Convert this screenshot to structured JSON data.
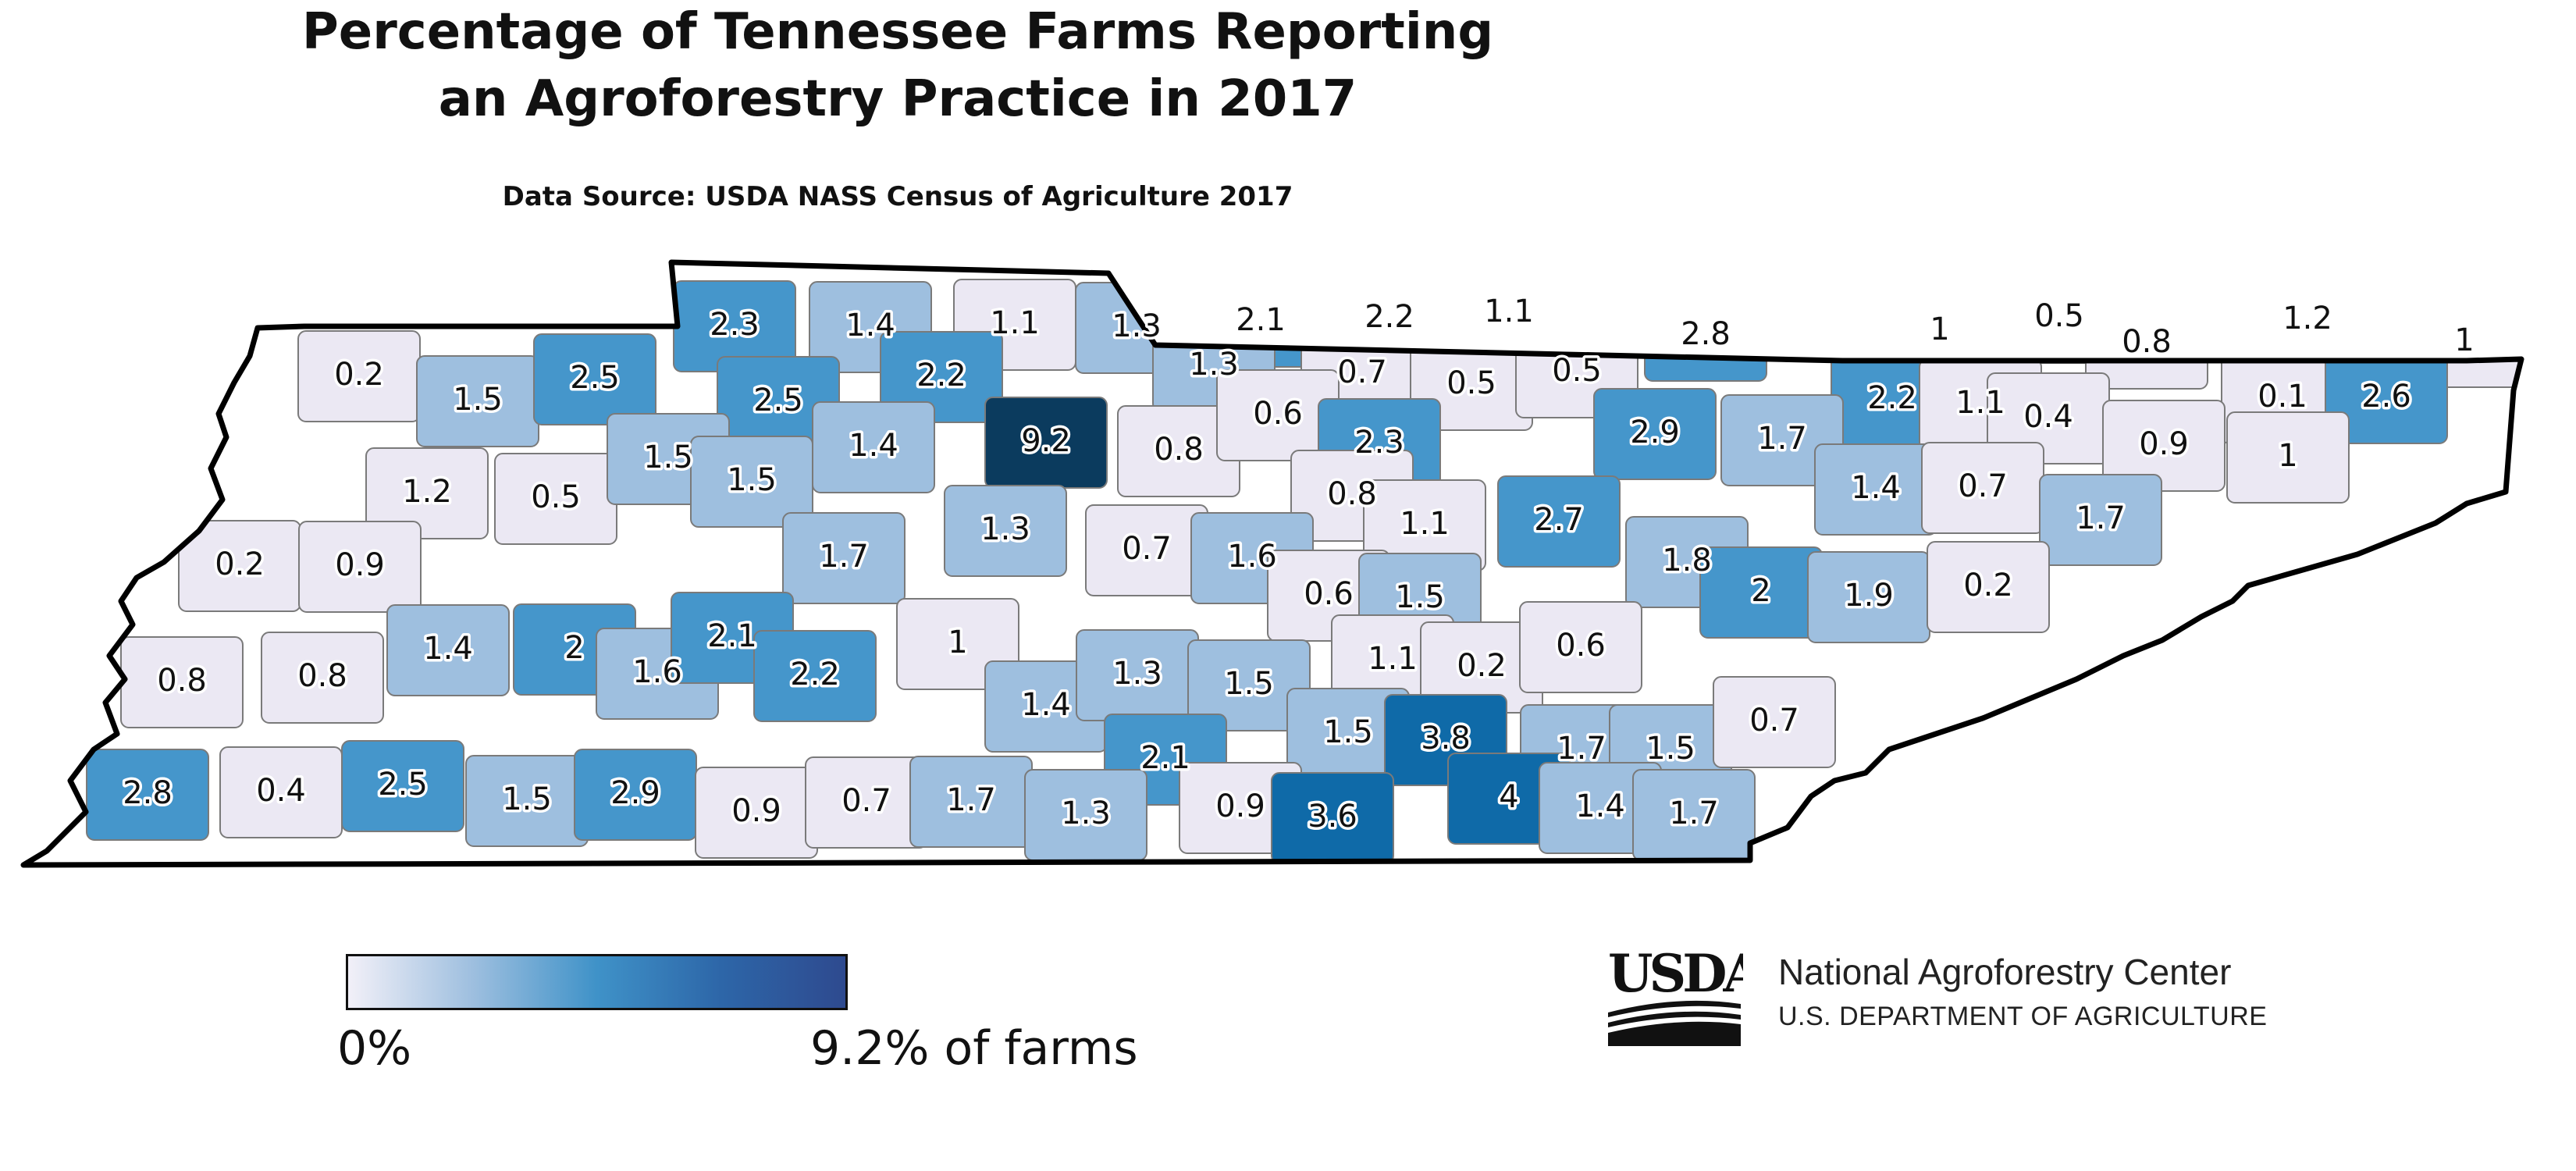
{
  "title": {
    "line1": "Percentage of Tennessee Farms Reporting",
    "line2": "an Agroforestry Practice in 2017"
  },
  "subtitle": "Data Source: USDA NASS Census of Agriculture 2017",
  "legend": {
    "min_label": "0%",
    "max_label": "9.2% of farms",
    "colors": [
      "#f2f0f8",
      "#9ebfdf",
      "#3f92c8",
      "#2d66a8",
      "#2e4a8f"
    ]
  },
  "branding": {
    "logo_text": "USDA",
    "center_name": "National Agroforestry Center",
    "department": "U.S. DEPARTMENT OF AGRICULTURE"
  },
  "color_scale": {
    "very_low": "#ebe8f3",
    "low": "#9ebfdf",
    "mid": "#4596cb",
    "high": "#0f6aa8",
    "max": "#0b3b5e",
    "border": "#7a7a7a",
    "state_outline": "#000000"
  },
  "counties": [
    {
      "value": "0.2"
    },
    {
      "value": "1.5"
    },
    {
      "value": "2.5"
    },
    {
      "value": "2.3"
    },
    {
      "value": "1.4"
    },
    {
      "value": "1.1"
    },
    {
      "value": "1.3"
    },
    {
      "value": "2.1"
    },
    {
      "value": "2.2"
    },
    {
      "value": "1.1"
    },
    {
      "value": "2.8"
    },
    {
      "value": "1"
    },
    {
      "value": "0.5"
    },
    {
      "value": "1.2"
    },
    {
      "value": "1"
    },
    {
      "value": "0.8"
    },
    {
      "value": "1.3"
    },
    {
      "value": "2.2"
    },
    {
      "value": "2.5"
    },
    {
      "value": "9.2"
    },
    {
      "value": "0.7"
    },
    {
      "value": "0.5"
    },
    {
      "value": "0.5"
    },
    {
      "value": "2.2"
    },
    {
      "value": "1.1"
    },
    {
      "value": "0.1"
    },
    {
      "value": "2.6"
    },
    {
      "value": "1.2"
    },
    {
      "value": "0.5"
    },
    {
      "value": "1.5"
    },
    {
      "value": "1.5"
    },
    {
      "value": "1.4"
    },
    {
      "value": "0.8"
    },
    {
      "value": "0.6"
    },
    {
      "value": "2.3"
    },
    {
      "value": "2.9"
    },
    {
      "value": "1.7"
    },
    {
      "value": "0.4"
    },
    {
      "value": "0.9"
    },
    {
      "value": "1"
    },
    {
      "value": "0.2"
    },
    {
      "value": "0.9"
    },
    {
      "value": "1.3"
    },
    {
      "value": "1.7"
    },
    {
      "value": "0.7"
    },
    {
      "value": "0.8"
    },
    {
      "value": "1.1"
    },
    {
      "value": "2.7"
    },
    {
      "value": "1.4"
    },
    {
      "value": "0.7"
    },
    {
      "value": "1.7"
    },
    {
      "value": "0.8"
    },
    {
      "value": "0.8"
    },
    {
      "value": "1.4"
    },
    {
      "value": "2"
    },
    {
      "value": "1.6"
    },
    {
      "value": "0.6"
    },
    {
      "value": "1.5"
    },
    {
      "value": "1.8"
    },
    {
      "value": "2"
    },
    {
      "value": "1.9"
    },
    {
      "value": "0.2"
    },
    {
      "value": "1.6"
    },
    {
      "value": "2.1"
    },
    {
      "value": "2.2"
    },
    {
      "value": "1"
    },
    {
      "value": "1.1"
    },
    {
      "value": "1.4"
    },
    {
      "value": "1.3"
    },
    {
      "value": "1.5"
    },
    {
      "value": "0.2"
    },
    {
      "value": "0.6"
    },
    {
      "value": "1.5"
    },
    {
      "value": "3.8"
    },
    {
      "value": "1.7"
    },
    {
      "value": "1.5"
    },
    {
      "value": "0.7"
    },
    {
      "value": "2.1"
    },
    {
      "value": "2.8"
    },
    {
      "value": "0.4"
    },
    {
      "value": "2.5"
    },
    {
      "value": "1.5"
    },
    {
      "value": "2.9"
    },
    {
      "value": "0.9"
    },
    {
      "value": "0.7"
    },
    {
      "value": "1.7"
    },
    {
      "value": "1.3"
    },
    {
      "value": "0.9"
    },
    {
      "value": "3.6"
    },
    {
      "value": "4"
    },
    {
      "value": "1.4"
    },
    {
      "value": "1.7"
    }
  ]
}
